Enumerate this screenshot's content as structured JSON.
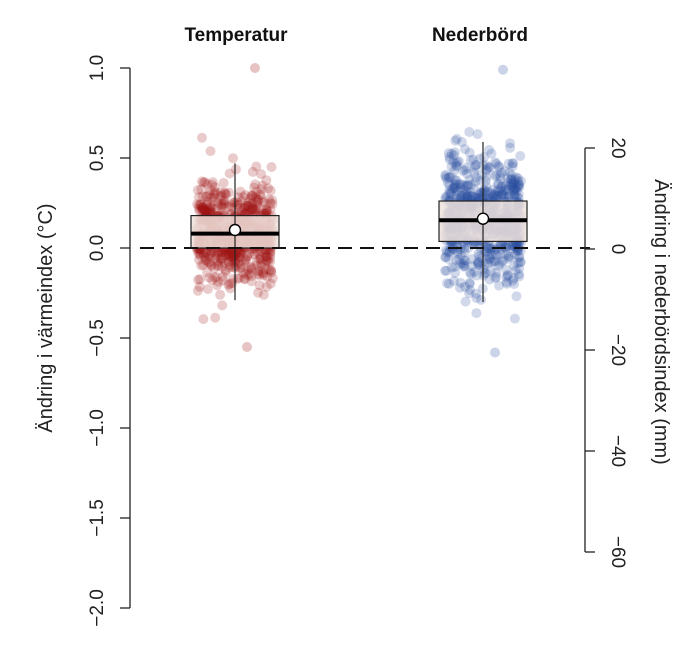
{
  "chart_data": {
    "type": "box-jitter",
    "panels": [
      {
        "title": "Temperatur",
        "color": "#a01010",
        "axis": "left",
        "box": {
          "q1": 0.0,
          "median": 0.08,
          "q3": 0.18,
          "mean": 0.1,
          "whisker_low": -0.29,
          "whisker_high": 0.47
        },
        "points": {
          "count": 700,
          "center": 0.08,
          "spread": 0.14,
          "min": -0.55,
          "max": 1.0
        }
      },
      {
        "title": "Nederbörd",
        "color": "#2b4fa0",
        "axis": "right",
        "box": {
          "q1": 1.5,
          "median": 5.7,
          "q3": 9.5,
          "mean": 6.0,
          "whisker_low": -10.5,
          "whisker_high": 21.2
        },
        "points": {
          "count": 700,
          "center": 5.7,
          "spread": 6.5,
          "min": -20.5,
          "max": 35.5
        }
      }
    ],
    "left_axis": {
      "label": "Ändring i värmeindex (°C)",
      "ylim": [
        -2.0,
        1.0
      ],
      "ticks": [
        1.0,
        0.5,
        0.0,
        -0.5,
        -1.0,
        -1.5,
        -2.0
      ],
      "tick_labels": [
        "1.0",
        "0.5",
        "0.0",
        "−0.5",
        "−1.0",
        "−1.5",
        "−2.0"
      ]
    },
    "right_axis": {
      "label": "Ändring i nederbördsindex (mm)",
      "ylim": [
        -60,
        20
      ],
      "ticks": [
        20,
        0,
        -20,
        -40,
        -60
      ],
      "tick_labels": [
        "20",
        "0",
        "−20",
        "−40",
        "−60"
      ]
    },
    "reference_line": 0
  }
}
